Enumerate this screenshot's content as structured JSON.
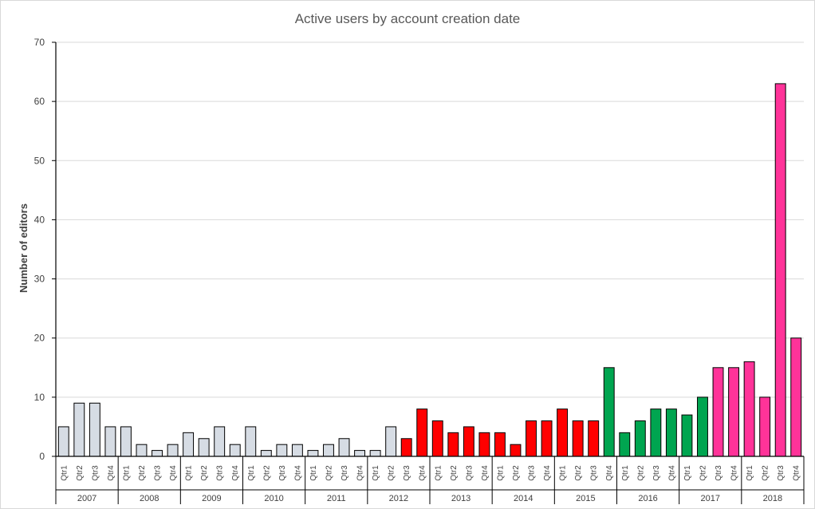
{
  "chart_data": {
    "type": "bar",
    "title": "Active users by account creation date",
    "xlabel": "",
    "ylabel": "Number of editors",
    "ylim": [
      0,
      70
    ],
    "yticks": [
      0,
      10,
      20,
      30,
      40,
      50,
      60,
      70
    ],
    "grid": true,
    "legend": "none",
    "years": [
      "2007",
      "2008",
      "2009",
      "2010",
      "2011",
      "2012",
      "2013",
      "2014",
      "2015",
      "2016",
      "2017",
      "2018"
    ],
    "quarters": [
      "Qtr1",
      "Qtr2",
      "Qtr3",
      "Qtr4"
    ],
    "values": [
      5,
      9,
      9,
      5,
      5,
      2,
      1,
      2,
      4,
      3,
      5,
      2,
      5,
      1,
      2,
      2,
      1,
      2,
      3,
      1,
      1,
      5,
      3,
      8,
      6,
      4,
      5,
      4,
      4,
      2,
      6,
      6,
      8,
      6,
      6,
      15,
      4,
      6,
      8,
      8,
      7,
      10,
      15,
      15,
      16,
      10,
      63,
      20
    ],
    "color_ranges": [
      {
        "from": 0,
        "to": 21,
        "color": "#d6dce4"
      },
      {
        "from": 22,
        "to": 34,
        "color": "#ff0000"
      },
      {
        "from": 35,
        "to": 41,
        "color": "#00a550"
      },
      {
        "from": 42,
        "to": 47,
        "color": "#ff3399"
      }
    ]
  }
}
